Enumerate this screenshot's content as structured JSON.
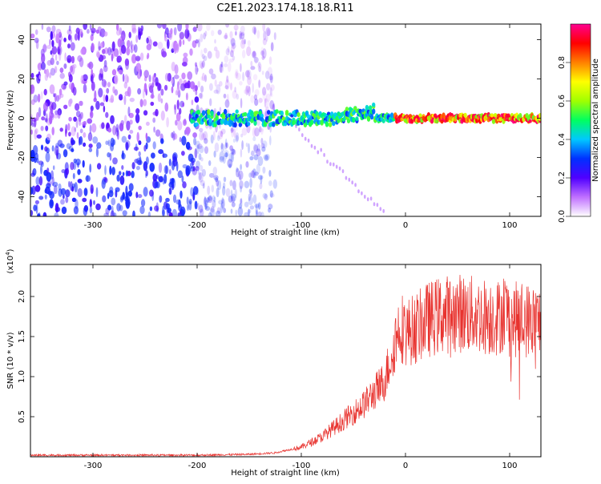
{
  "figure": {
    "title": "C2E1.2023.174.18.18.R11"
  },
  "colors": {
    "snr_line": "#e8332f",
    "axis": "#000000",
    "background": "#ffffff"
  },
  "chart_data": [
    {
      "type": "heatmap",
      "xlabel": "Height of straight line (km)",
      "ylabel": "Frequency (Hz)",
      "xlim": [
        -360,
        130
      ],
      "ylim": [
        -50,
        48
      ],
      "x_ticks": [
        -300,
        -200,
        -100,
        0,
        100
      ],
      "y_ticks": [
        -40,
        -20,
        0,
        20,
        40
      ],
      "colorbar": {
        "label": "Normalized spectral amplitude",
        "range": [
          0,
          1
        ],
        "ticks": [
          0.0,
          0.2,
          0.4,
          0.6,
          0.8
        ],
        "colormap": [
          "#ffffff",
          "#c070ff",
          "#5000ff",
          "#0030ff",
          "#00c8ff",
          "#00ff60",
          "#a0ff00",
          "#ffff00",
          "#ff8000",
          "#ff0000",
          "#ff0090"
        ]
      },
      "features": {
        "noise_region_x": [
          -360,
          -125
        ],
        "signal_start_x": -205,
        "signal_center_freq_hz": 0,
        "signal_peak_start_x": -10
      }
    },
    {
      "type": "line",
      "xlabel": "Height of straight line (km)",
      "ylabel": "SNR (10 * v/v)",
      "y_multiplier": "(x10",
      "y_multiplier_exp": "4",
      "y_multiplier_close": ")",
      "xlim": [
        -360,
        130
      ],
      "ylim": [
        0,
        2.4
      ],
      "x_ticks": [
        -300,
        -200,
        -100,
        0,
        100
      ],
      "y_ticks": [
        0.5,
        1.0,
        1.5,
        2.0
      ],
      "series": [
        {
          "x": [
            -360,
            -300,
            -250,
            -200,
            -150,
            -125,
            -100,
            -80,
            -60,
            -40,
            -30,
            -20,
            -15,
            -10,
            -5,
            0,
            10,
            20,
            30,
            40,
            50,
            60,
            70,
            80,
            90,
            95,
            100,
            110,
            120,
            130
          ],
          "y": [
            0.02,
            0.02,
            0.02,
            0.02,
            0.03,
            0.05,
            0.12,
            0.25,
            0.45,
            0.65,
            0.8,
            0.95,
            1.2,
            1.45,
            1.65,
            1.55,
            1.6,
            1.7,
            1.75,
            1.78,
            1.8,
            1.78,
            1.76,
            1.75,
            1.74,
            1.85,
            1.7,
            1.72,
            1.7,
            1.68
          ]
        }
      ]
    }
  ]
}
